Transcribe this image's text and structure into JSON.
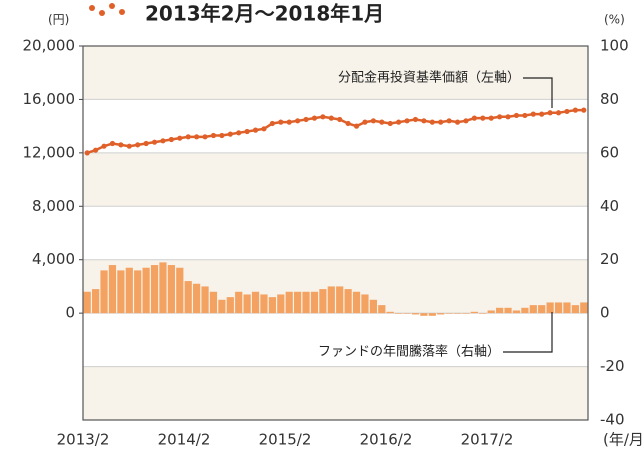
{
  "chart_data": {
    "type": "bar-line",
    "title": "2013年2月～2018年1月",
    "y_unit": "(円)",
    "y2_unit": "(%)",
    "x_unit": "(年/月)",
    "categories": [
      "2013/2",
      null,
      null,
      null,
      null,
      null,
      null,
      null,
      null,
      null,
      null,
      null,
      "2014/2",
      null,
      null,
      null,
      null,
      null,
      null,
      null,
      null,
      null,
      null,
      null,
      "2015/2",
      null,
      null,
      null,
      null,
      null,
      null,
      null,
      null,
      null,
      null,
      null,
      "2016/2",
      null,
      null,
      null,
      null,
      null,
      null,
      null,
      null,
      null,
      null,
      null,
      "2017/2",
      null,
      null,
      null,
      null,
      null,
      null,
      null,
      null,
      null,
      null,
      null
    ],
    "series": [
      {
        "name": "分配金再投資基準価額（左軸）",
        "color": "#e0602a",
        "type": "line",
        "values": [
          12000,
          12200,
          12500,
          12700,
          12600,
          12500,
          12600,
          12700,
          12800,
          12900,
          13000,
          13100,
          13200,
          13200,
          13200,
          13300,
          13300,
          13400,
          13500,
          13600,
          13700,
          13800,
          14200,
          14300,
          14300,
          14400,
          14500,
          14600,
          14700,
          14600,
          14500,
          14200,
          14000,
          14300,
          14400,
          14300,
          14200,
          14300,
          14400,
          14500,
          14400,
          14300,
          14300,
          14400,
          14300,
          14400,
          14600,
          14600,
          14600,
          14700,
          14700,
          14800,
          14800,
          14900,
          14900,
          15000,
          15000,
          15100,
          15200,
          15200
        ]
      },
      {
        "name": "ファンドの年間騰落率（右軸）",
        "color": "#f4a261",
        "type": "bar",
        "axis": "y2",
        "values": [
          8,
          9,
          16,
          18,
          16,
          17,
          16,
          17,
          18,
          19,
          18,
          17,
          12,
          11,
          10,
          8,
          5,
          6,
          8,
          7,
          8,
          7,
          6,
          7,
          8,
          8,
          8,
          8,
          9,
          10,
          10,
          9,
          8,
          7,
          5,
          3,
          0.5,
          0,
          0,
          -0.5,
          -1,
          -1,
          -0.5,
          0,
          0,
          0,
          0.5,
          0,
          1,
          2,
          2,
          1,
          2,
          3,
          3,
          4,
          4,
          4,
          3,
          4
        ]
      }
    ],
    "ylim": [
      -8000,
      20000
    ],
    "yticks": [
      {
        "value": 0,
        "label": "0"
      },
      {
        "value": 4000,
        "label": "4,000"
      },
      {
        "value": 8000,
        "label": "8,000"
      },
      {
        "value": 12000,
        "label": "12,000"
      },
      {
        "value": 16000,
        "label": "16,000"
      },
      {
        "value": 20000,
        "label": "20,000"
      }
    ],
    "y2lim": [
      -40,
      100
    ],
    "y2ticks": [
      -40,
      -20,
      0,
      20,
      40,
      60,
      80,
      100
    ],
    "grid": true
  }
}
